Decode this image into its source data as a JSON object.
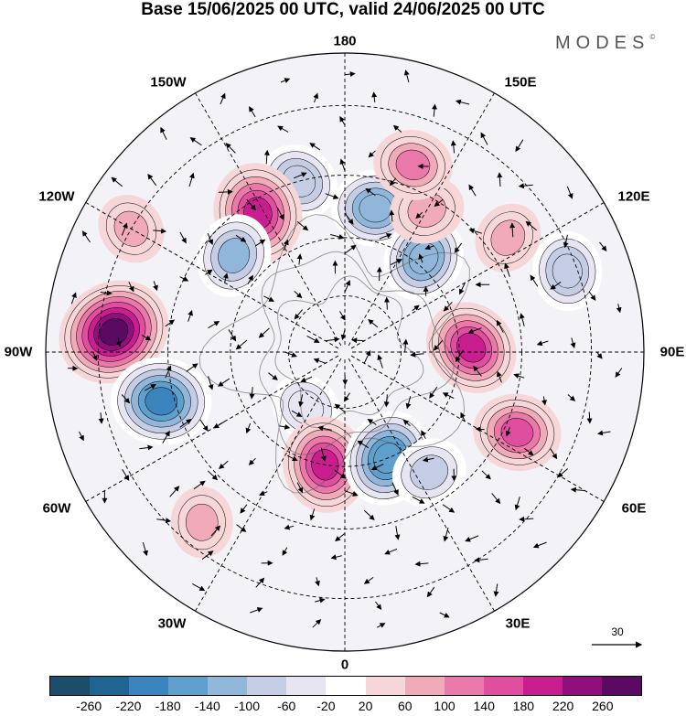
{
  "title": "Base 15/06/2025 00 UTC, valid 24/06/2025 00 UTC",
  "brand": "MODES",
  "brand_mark": "©",
  "longitude_labels": [
    {
      "id": "180",
      "text": "180"
    },
    {
      "id": "150E",
      "text": "150E"
    },
    {
      "id": "120E",
      "text": "120E"
    },
    {
      "id": "90E",
      "text": "90E"
    },
    {
      "id": "60E",
      "text": "60E"
    },
    {
      "id": "30E",
      "text": "30E"
    },
    {
      "id": "0",
      "text": "0"
    },
    {
      "id": "30W",
      "text": "30W"
    },
    {
      "id": "60W",
      "text": "60W"
    },
    {
      "id": "90W",
      "text": "90W"
    },
    {
      "id": "120W",
      "text": "120W"
    },
    {
      "id": "150W",
      "text": "150W"
    }
  ],
  "reference_vector": {
    "label": "30"
  },
  "colorbar": {
    "colors": [
      "#1b4e6b",
      "#1f6594",
      "#3b84bd",
      "#5f9fcc",
      "#90b7da",
      "#c4cde4",
      "#e6e5f1",
      "#ffffff",
      "#f7d6d8",
      "#f1aab8",
      "#ea79a9",
      "#e04f9f",
      "#c81e8f",
      "#8f0f7b",
      "#5a0a62"
    ],
    "tick_labels": [
      "-260",
      "-220",
      "-180",
      "-140",
      "-100",
      "-60",
      "-20",
      "20",
      "60",
      "100",
      "140",
      "180",
      "220",
      "260"
    ]
  },
  "anomalies": [
    {
      "lon": 168,
      "lat": 52,
      "value": -140
    },
    {
      "lon": -165,
      "lat": 45,
      "value": -100
    },
    {
      "lon": -148,
      "lat": 48,
      "value": 200
    },
    {
      "lon": -131,
      "lat": 52,
      "value": -120
    },
    {
      "lon": -95,
      "lat": 33,
      "value": 260
    },
    {
      "lon": -75,
      "lat": 42,
      "value": -200
    },
    {
      "lon": -35,
      "lat": 72,
      "value": -60
    },
    {
      "lon": -10,
      "lat": 60,
      "value": 180
    },
    {
      "lon": 22,
      "lat": 60,
      "value": -180
    },
    {
      "lon": 35,
      "lat": 52,
      "value": -80
    },
    {
      "lon": 65,
      "lat": 42,
      "value": 140
    },
    {
      "lon": 92,
      "lat": 57,
      "value": 180
    },
    {
      "lon": 110,
      "lat": 32,
      "value": -100
    },
    {
      "lon": 140,
      "lat": 58,
      "value": -140
    },
    {
      "lon": 150,
      "lat": 48,
      "value": 80
    },
    {
      "lon": 160,
      "lat": 40,
      "value": 100
    },
    {
      "lon": -120,
      "lat": 30,
      "value": 60
    },
    {
      "lon": -40,
      "lat": 35,
      "value": 60
    },
    {
      "lon": 125,
      "lat": 40,
      "value": 60
    }
  ]
}
